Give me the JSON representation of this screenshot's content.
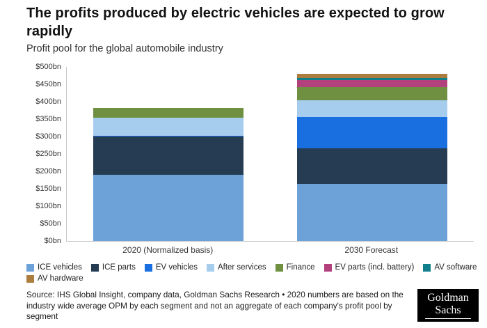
{
  "header": {
    "title": "The profits produced by electric vehicles are expected to grow rapidly",
    "subtitle": "Profit pool for the global automobile industry"
  },
  "chart_data": {
    "type": "bar",
    "stacked": true,
    "title": "Profit pool for the global automobile industry",
    "xlabel": "",
    "ylabel": "",
    "ylim": [
      0,
      500
    ],
    "ytick_step": 50,
    "yticks": [
      "$0bn",
      "$50bn",
      "$100bn",
      "$150bn",
      "$200bn",
      "$250bn",
      "$300bn",
      "$350bn",
      "$400bn",
      "$450bn",
      "$500bn"
    ],
    "categories": [
      "2020 (Normalized basis)",
      "2030 Forecast"
    ],
    "series": [
      {
        "name": "ICE vehicles",
        "color": "#6da2d9",
        "values": [
          190,
          165
        ]
      },
      {
        "name": "ICE parts",
        "color": "#263c52",
        "values": [
          110,
          101
        ]
      },
      {
        "name": "EV vehicles",
        "color": "#1a6fe0",
        "values": [
          3,
          91
        ]
      },
      {
        "name": "After services",
        "color": "#a6cdee",
        "values": [
          52,
          48
        ]
      },
      {
        "name": "Finance",
        "color": "#6f9040",
        "values": [
          27,
          38
        ]
      },
      {
        "name": "EV parts (incl. battery)",
        "color": "#b2417e",
        "values": [
          0,
          19
        ]
      },
      {
        "name": "AV software",
        "color": "#0f7f8b",
        "values": [
          0,
          6
        ]
      },
      {
        "name": "AV hardware",
        "color": "#ad7d3f",
        "values": [
          0,
          12
        ]
      }
    ],
    "legend_position": "bottom",
    "grid": false
  },
  "footer": {
    "source_text": "Source: IHS Global Insight, company data, Goldman Sachs Research • 2020 numbers are based on the industry wide average OPM by each segment and not an aggregate of each company's profit pool by segment",
    "logo_line1": "Goldman",
    "logo_line2": "Sachs"
  }
}
